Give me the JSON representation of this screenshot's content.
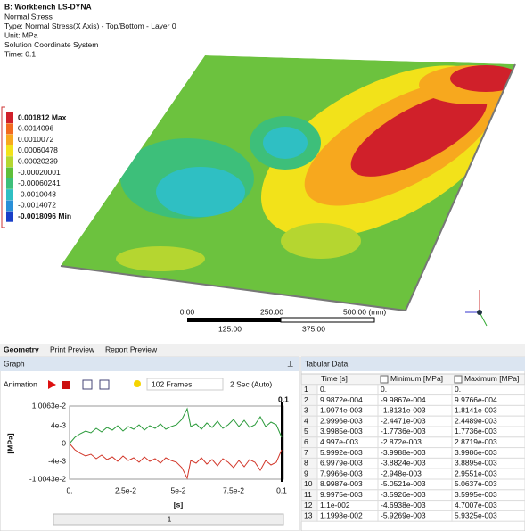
{
  "viewport": {
    "title": "B: Workbench LS-DYNA",
    "lines": [
      "Normal Stress",
      "Type: Normal Stress(X Axis) - Top/Bottom - Layer 0",
      "Unit: MPa",
      "Solution Coordinate System",
      "Time: 0.1"
    ],
    "legend": [
      {
        "label": "0.001812 Max",
        "color": "#d0202a"
      },
      {
        "label": "0.0014096",
        "color": "#f26a1f"
      },
      {
        "label": "0.0010072",
        "color": "#f7a81e"
      },
      {
        "label": "0.00060478",
        "color": "#f2e21a"
      },
      {
        "label": "0.00020239",
        "color": "#b5d630"
      },
      {
        "label": "-0.00020001",
        "color": "#5fbf3a"
      },
      {
        "label": "-0.00060241",
        "color": "#3dbf7a"
      },
      {
        "label": "-0.0010048",
        "color": "#2fbfc3"
      },
      {
        "label": "-0.0014072",
        "color": "#2a8fd8"
      },
      {
        "label": "-0.0018096 Min",
        "color": "#1a3fc8"
      }
    ],
    "scale": [
      "0.00",
      "250.00",
      "500.00 (mm)",
      "125.00",
      "375.00"
    ]
  },
  "tabs": [
    "Geometry",
    "Print Preview",
    "Report Preview"
  ],
  "graph": {
    "title": "Graph",
    "animation": "Animation",
    "frames": "102 Frames",
    "duration": "2 Sec (Auto)",
    "yticks": [
      "1.0063e-2",
      "4e-3",
      "0",
      "-4e-3",
      "-1.0043e-2"
    ],
    "y_label": "[MPa]",
    "xticks": [
      "0.",
      "2.5e-2",
      "5e-2",
      "7.5e-2",
      "0.1"
    ],
    "x_label": "[s]",
    "cursor": "0.1",
    "frame": "1"
  },
  "table": {
    "title": "Tabular Data",
    "columns": [
      "Time [s]",
      "Minimum [MPa]",
      "Maximum [MPa]"
    ],
    "rows": [
      [
        "1",
        "0.",
        "0.",
        "0."
      ],
      [
        "2",
        "9.9872e-004",
        "-9.9867e-004",
        "9.9766e-004"
      ],
      [
        "3",
        "1.9974e-003",
        "-1.8131e-003",
        "1.8141e-003"
      ],
      [
        "4",
        "2.9996e-003",
        "-2.4471e-003",
        "2.4489e-003"
      ],
      [
        "5",
        "3.9985e-003",
        "-1.7736e-003",
        "1.7736e-003"
      ],
      [
        "6",
        "4.997e-003",
        "-2.872e-003",
        "2.8719e-003"
      ],
      [
        "7",
        "5.9992e-003",
        "-3.9988e-003",
        "3.9986e-003"
      ],
      [
        "8",
        "6.9979e-003",
        "-3.8824e-003",
        "3.8895e-003"
      ],
      [
        "9",
        "7.9966e-003",
        "-2.948e-003",
        "2.9551e-003"
      ],
      [
        "10",
        "8.9987e-003",
        "-5.0521e-003",
        "5.0637e-003"
      ],
      [
        "11",
        "9.9975e-003",
        "-3.5926e-003",
        "3.5995e-003"
      ],
      [
        "12",
        "1.1e-002",
        "-4.6938e-003",
        "4.7007e-003"
      ],
      [
        "13",
        "1.1998e-002",
        "-5.9269e-003",
        "5.9325e-003"
      ]
    ]
  }
}
